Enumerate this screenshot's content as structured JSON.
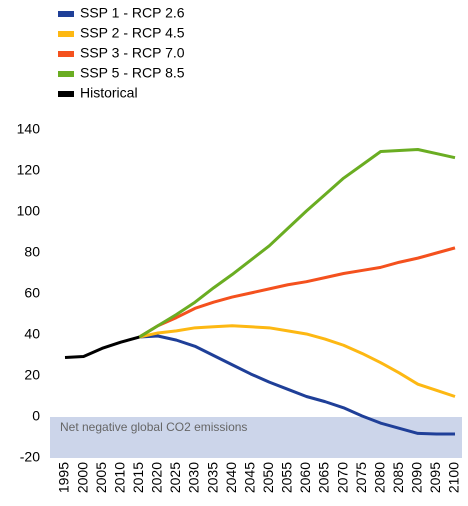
{
  "chart_data": {
    "type": "line",
    "x": [
      1995,
      2000,
      2005,
      2010,
      2015,
      2020,
      2025,
      2030,
      2035,
      2040,
      2045,
      2050,
      2055,
      2060,
      2065,
      2070,
      2075,
      2080,
      2085,
      2090,
      2095,
      2100
    ],
    "xlim": [
      1995,
      2100
    ],
    "ylim": [
      -20,
      140
    ],
    "yticks": [
      -20,
      0,
      20,
      40,
      60,
      80,
      100,
      120,
      140
    ],
    "grid": false,
    "legend": "top-left",
    "annotation": {
      "text": "Net negative global CO2 emissions",
      "range": [
        -20,
        0
      ],
      "color": "#ccd5ea"
    },
    "series": [
      {
        "name": "SSP 1 - RCP 2.6",
        "color": "#1f3f98",
        "values": [
          null,
          null,
          null,
          null,
          39,
          39.5,
          37.5,
          34.5,
          30,
          25.5,
          21,
          17,
          13.5,
          10,
          7.5,
          4.5,
          0.5,
          -3,
          -5.5,
          -8,
          -8.3,
          -8.3
        ]
      },
      {
        "name": "SSP 2 - RCP 4.5",
        "color": "#fdb813",
        "values": [
          null,
          null,
          null,
          null,
          39,
          41,
          42,
          43.5,
          44,
          44.5,
          44,
          43.5,
          42,
          40.5,
          38,
          35,
          31,
          26.5,
          21.5,
          16,
          13,
          10
        ]
      },
      {
        "name": "SSP 3 - RCP 7.0",
        "color": "#f4511e",
        "values": [
          null,
          null,
          null,
          null,
          39,
          44.5,
          48.5,
          53,
          56,
          58.5,
          60.5,
          62.5,
          64.5,
          66,
          68,
          70,
          71.5,
          73,
          75.5,
          77.5,
          80,
          82.5
        ]
      },
      {
        "name": "SSP 5 - RCP 8.5",
        "color": "#6aad22",
        "values": [
          null,
          null,
          null,
          null,
          39,
          44.5,
          50,
          56,
          63,
          69.5,
          76.5,
          83.5,
          92,
          100.5,
          108.5,
          116.5,
          123,
          129.5,
          130,
          130.5,
          128.5,
          126.5
        ]
      },
      {
        "name": "Historical",
        "color": "#000000",
        "values": [
          29,
          29.5,
          33.5,
          36.5,
          39,
          null,
          null,
          null,
          null,
          null,
          null,
          null,
          null,
          null,
          null,
          null,
          null,
          null,
          null,
          null,
          null,
          null
        ]
      }
    ]
  }
}
